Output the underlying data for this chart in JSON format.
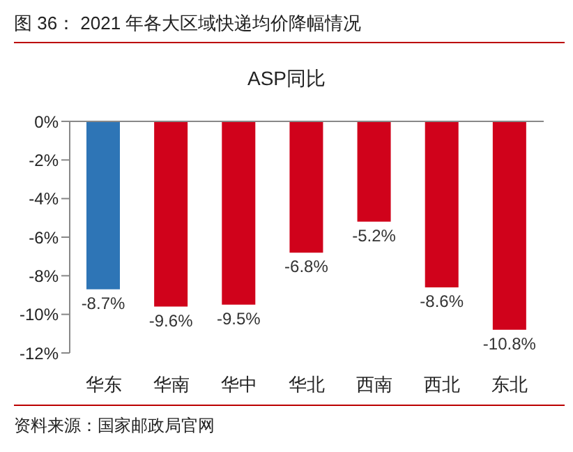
{
  "chart_data": {
    "type": "bar",
    "title": "图 36：  2021 年各大区域快递均价降幅情况",
    "subtitle": "ASP同比",
    "categories": [
      "华东",
      "华南",
      "华中",
      "华北",
      "西南",
      "西北",
      "东北"
    ],
    "values": [
      -8.7,
      -9.6,
      -9.5,
      -6.8,
      -5.2,
      -8.6,
      -10.8
    ],
    "colors": [
      "#2e75b6",
      "#d0021b",
      "#d0021b",
      "#d0021b",
      "#d0021b",
      "#d0021b",
      "#d0021b"
    ],
    "value_labels": [
      "-8.7%",
      "-9.6%",
      "-9.5%",
      "-6.8%",
      "-5.2%",
      "-8.6%",
      "-10.8%"
    ],
    "ylim": [
      -12,
      0
    ],
    "yticks": [
      {
        "value": 0,
        "label": "0%"
      },
      {
        "value": -2,
        "label": "-2%"
      },
      {
        "value": -4,
        "label": "-4%"
      },
      {
        "value": -6,
        "label": "-6%"
      },
      {
        "value": -8,
        "label": "-8%"
      },
      {
        "value": -10,
        "label": "-10%"
      },
      {
        "value": -12,
        "label": "-12%"
      }
    ],
    "grid": false,
    "annotations": [
      "资料来源：国家邮政局官网"
    ]
  }
}
